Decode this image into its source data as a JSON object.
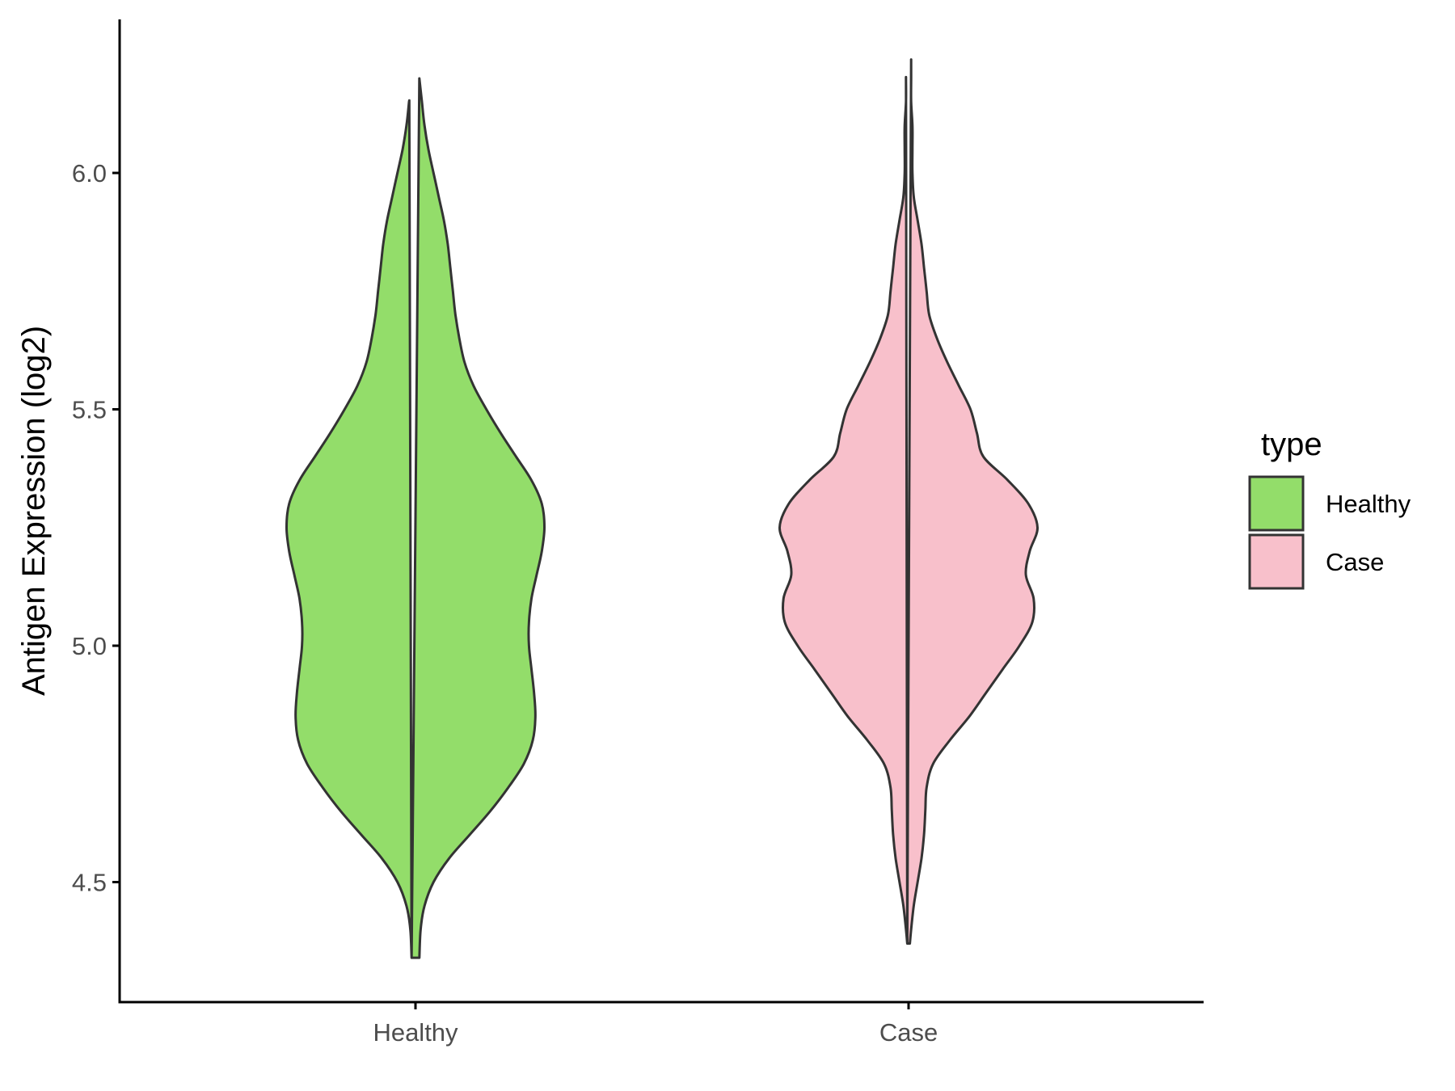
{
  "chart_data": {
    "type": "violin",
    "title": "",
    "xlabel": "",
    "ylabel": "Antigen Expression (log2)",
    "ylim": [
      4.25,
      6.33
    ],
    "yticks": [
      4.5,
      5.0,
      5.5,
      6.0
    ],
    "ytick_labels": [
      "4.5",
      "5.0",
      "5.5",
      "6.0"
    ],
    "categories": [
      "Healthy",
      "Case"
    ],
    "grid": false,
    "legend": {
      "title": "type",
      "position": "right",
      "entries": [
        "Healthy",
        "Case"
      ]
    },
    "series": [
      {
        "name": "Healthy",
        "color": "#93dd6a",
        "min": 4.34,
        "max": 6.2,
        "density_profile": [
          [
            4.34,
            0.03
          ],
          [
            4.4,
            0.04
          ],
          [
            4.45,
            0.07
          ],
          [
            4.5,
            0.14
          ],
          [
            4.55,
            0.26
          ],
          [
            4.6,
            0.42
          ],
          [
            4.65,
            0.58
          ],
          [
            4.7,
            0.72
          ],
          [
            4.75,
            0.84
          ],
          [
            4.8,
            0.91
          ],
          [
            4.85,
            0.93
          ],
          [
            4.9,
            0.92
          ],
          [
            4.95,
            0.9
          ],
          [
            5.0,
            0.88
          ],
          [
            5.05,
            0.88
          ],
          [
            5.1,
            0.9
          ],
          [
            5.15,
            0.94
          ],
          [
            5.2,
            0.98
          ],
          [
            5.25,
            1.0
          ],
          [
            5.3,
            0.98
          ],
          [
            5.35,
            0.9
          ],
          [
            5.4,
            0.78
          ],
          [
            5.45,
            0.66
          ],
          [
            5.5,
            0.55
          ],
          [
            5.55,
            0.45
          ],
          [
            5.6,
            0.38
          ],
          [
            5.65,
            0.34
          ],
          [
            5.7,
            0.31
          ],
          [
            5.75,
            0.29
          ],
          [
            5.8,
            0.27
          ],
          [
            5.85,
            0.25
          ],
          [
            5.9,
            0.22
          ],
          [
            5.95,
            0.18
          ],
          [
            6.0,
            0.14
          ],
          [
            6.05,
            0.1
          ],
          [
            6.1,
            0.07
          ],
          [
            6.15,
            0.05
          ],
          [
            6.2,
            0.03
          ]
        ]
      },
      {
        "name": "Case",
        "color": "#f8c0cb",
        "min": 4.37,
        "max": 6.24,
        "density_profile": [
          [
            4.37,
            0.01
          ],
          [
            4.4,
            0.02
          ],
          [
            4.45,
            0.04
          ],
          [
            4.5,
            0.07
          ],
          [
            4.55,
            0.1
          ],
          [
            4.6,
            0.12
          ],
          [
            4.65,
            0.13
          ],
          [
            4.7,
            0.14
          ],
          [
            4.75,
            0.19
          ],
          [
            4.8,
            0.32
          ],
          [
            4.85,
            0.47
          ],
          [
            4.9,
            0.6
          ],
          [
            4.95,
            0.73
          ],
          [
            5.0,
            0.86
          ],
          [
            5.05,
            0.96
          ],
          [
            5.1,
            0.97
          ],
          [
            5.15,
            0.91
          ],
          [
            5.2,
            0.94
          ],
          [
            5.25,
            1.0
          ],
          [
            5.3,
            0.93
          ],
          [
            5.35,
            0.77
          ],
          [
            5.4,
            0.58
          ],
          [
            5.45,
            0.53
          ],
          [
            5.5,
            0.48
          ],
          [
            5.55,
            0.39
          ],
          [
            5.6,
            0.3
          ],
          [
            5.65,
            0.22
          ],
          [
            5.7,
            0.16
          ],
          [
            5.75,
            0.14
          ],
          [
            5.8,
            0.12
          ],
          [
            5.85,
            0.1
          ],
          [
            5.9,
            0.07
          ],
          [
            5.95,
            0.04
          ],
          [
            6.0,
            0.03
          ],
          [
            6.05,
            0.03
          ],
          [
            6.1,
            0.03
          ],
          [
            6.15,
            0.02
          ],
          [
            6.2,
            0.02
          ],
          [
            6.24,
            0.02
          ]
        ]
      }
    ],
    "colors": {
      "outline": "#333333",
      "axis": "#000000"
    }
  }
}
